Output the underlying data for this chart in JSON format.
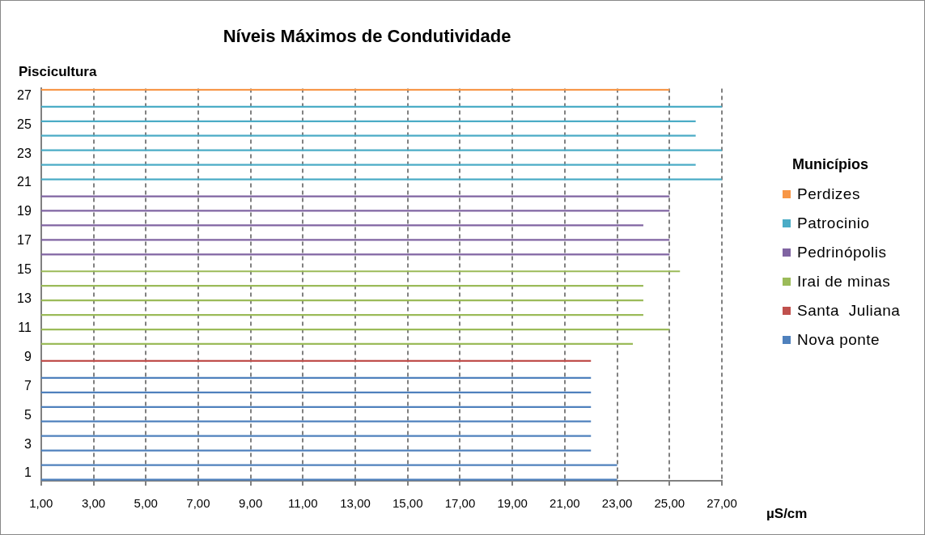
{
  "chart_data": {
    "type": "bar",
    "orientation": "horizontal",
    "title": "Níveis Máximos de Condutividade",
    "ylabel": "Piscicultura",
    "xlabel": "µS/cm",
    "legend_title": "Municípios",
    "legend": "right",
    "grid": "x",
    "line_style": "dashed",
    "categories": [
      "27",
      null,
      "25",
      null,
      "23",
      null,
      "21",
      null,
      "19",
      null,
      "17",
      null,
      "15",
      null,
      "13",
      null,
      "11",
      null,
      "9",
      null,
      "7",
      null,
      "5",
      null,
      "3",
      null,
      "1"
    ],
    "xlim": [
      1,
      27
    ],
    "xticks": [
      {
        "value": 1,
        "label": "1,00"
      },
      {
        "value": 3,
        "label": "3,00"
      },
      {
        "value": 5,
        "label": "5,00"
      },
      {
        "value": 7,
        "label": "7,00"
      },
      {
        "value": 9,
        "label": "9,00"
      },
      {
        "value": 11,
        "label": "11,00"
      },
      {
        "value": 13,
        "label": "13,00"
      },
      {
        "value": 15,
        "label": "15,00"
      },
      {
        "value": 17,
        "label": "17,00"
      },
      {
        "value": 19,
        "label": "19,00"
      },
      {
        "value": 21,
        "label": "21,00"
      },
      {
        "value": 23,
        "label": "23,00"
      },
      {
        "value": 25,
        "label": "25,00"
      },
      {
        "value": 27,
        "label": "27,00"
      }
    ],
    "series": [
      {
        "name": "Perdizes",
        "color": "#f79646",
        "values": [
          25,
          null,
          null,
          null,
          null,
          null,
          null,
          null,
          null,
          null,
          null,
          null,
          null,
          null,
          null,
          null,
          null,
          null,
          null,
          null,
          null,
          null,
          null,
          null,
          null,
          null,
          null
        ]
      },
      {
        "name": "Patrocinio",
        "color": "#4bacc6",
        "values": [
          null,
          27,
          26,
          26,
          27,
          26,
          27,
          null,
          null,
          null,
          null,
          null,
          null,
          null,
          null,
          null,
          null,
          null,
          null,
          null,
          null,
          null,
          null,
          null,
          null,
          null,
          null
        ]
      },
      {
        "name": "Pedrinópolis",
        "color": "#8064a2",
        "values": [
          null,
          null,
          null,
          null,
          null,
          null,
          null,
          25,
          25,
          24,
          25,
          25,
          null,
          null,
          null,
          null,
          null,
          null,
          null,
          null,
          null,
          null,
          null,
          null,
          null,
          null,
          null
        ]
      },
      {
        "name": "Irai de minas",
        "color": "#9bbb59",
        "values": [
          null,
          null,
          null,
          null,
          null,
          null,
          null,
          null,
          null,
          null,
          null,
          null,
          25.4,
          24,
          24,
          24,
          25,
          23.6,
          null,
          null,
          null,
          null,
          null,
          null,
          null,
          null,
          null
        ]
      },
      {
        "name": "Santa  Juliana",
        "color": "#c0504d",
        "values": [
          null,
          null,
          null,
          null,
          null,
          null,
          null,
          null,
          null,
          null,
          null,
          null,
          null,
          null,
          null,
          null,
          null,
          null,
          22,
          null,
          null,
          null,
          null,
          null,
          null,
          null,
          null
        ]
      },
      {
        "name": "Nova ponte",
        "color": "#4f81bd",
        "values": [
          null,
          null,
          null,
          null,
          null,
          null,
          null,
          null,
          null,
          null,
          null,
          null,
          null,
          null,
          null,
          null,
          null,
          null,
          null,
          22,
          22,
          22,
          22,
          22,
          22,
          23,
          23
        ]
      }
    ]
  }
}
